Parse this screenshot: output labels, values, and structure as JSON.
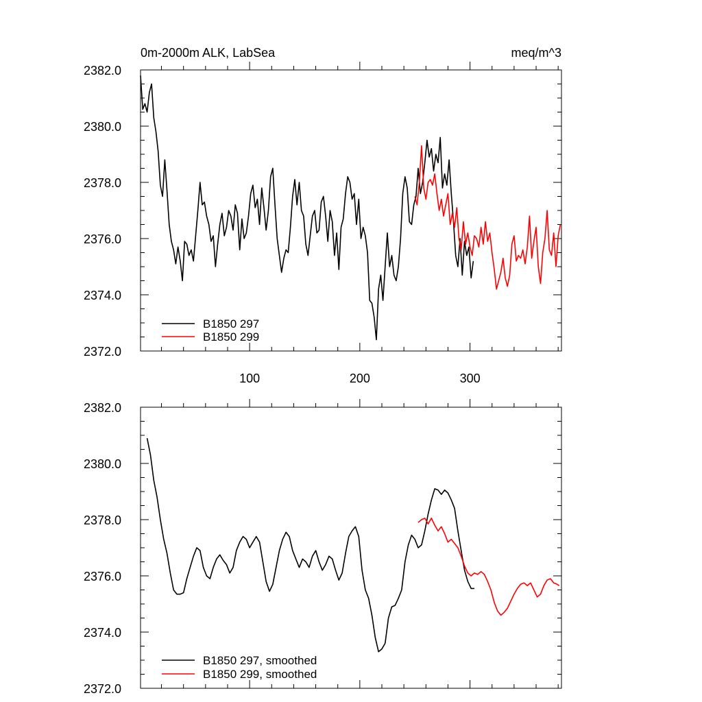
{
  "chart_data": [
    {
      "type": "line",
      "title": "0m-2000m ALK, LabSea",
      "units": "meq/m^3",
      "xlim": [
        1,
        383
      ],
      "ylim": [
        2372,
        2382
      ],
      "xticks": [
        100,
        200,
        300
      ],
      "yticks": [
        2372,
        2374,
        2376,
        2378,
        2380,
        2382
      ],
      "ytick_labels": [
        "2372.0",
        "2374.0",
        "2376.0",
        "2378.0",
        "2380.0",
        "2382.0"
      ],
      "legend": "bottom-left",
      "grid": false,
      "series": [
        {
          "name": "B1850 297",
          "color": "#000000",
          "x": [
            1,
            3,
            5,
            7,
            9,
            11,
            13,
            15,
            17,
            19,
            21,
            23,
            25,
            27,
            29,
            31,
            33,
            35,
            37,
            39,
            41,
            43,
            45,
            47,
            49,
            51,
            53,
            55,
            57,
            59,
            61,
            63,
            65,
            67,
            69,
            71,
            73,
            75,
            77,
            79,
            81,
            83,
            85,
            87,
            89,
            91,
            93,
            95,
            97,
            99,
            101,
            103,
            105,
            107,
            109,
            111,
            113,
            115,
            117,
            119,
            121,
            123,
            125,
            127,
            129,
            131,
            133,
            135,
            137,
            139,
            141,
            143,
            145,
            147,
            149,
            151,
            153,
            155,
            157,
            159,
            161,
            163,
            165,
            167,
            169,
            171,
            173,
            175,
            177,
            179,
            181,
            183,
            185,
            187,
            189,
            191,
            193,
            195,
            197,
            199,
            201,
            203,
            205,
            207,
            209,
            211,
            213,
            215,
            217,
            219,
            221,
            223,
            225,
            227,
            229,
            231,
            233,
            235,
            237,
            239,
            241,
            243,
            245,
            247,
            249,
            251,
            253,
            255,
            257,
            259,
            261,
            263,
            265,
            267,
            269,
            271,
            273,
            275,
            277,
            279,
            281,
            283,
            285,
            287,
            289,
            291,
            293,
            295,
            297,
            299,
            301,
            303
          ],
          "y": [
            2381.8,
            2380.6,
            2380.8,
            2380.5,
            2381.2,
            2381.5,
            2380.3,
            2379.8,
            2379.1,
            2377.9,
            2377.5,
            2378.8,
            2377.7,
            2376.5,
            2375.9,
            2375.6,
            2375.1,
            2375.7,
            2375.2,
            2374.5,
            2375.9,
            2375.8,
            2375.4,
            2375.6,
            2375.2,
            2376.1,
            2377.0,
            2378.0,
            2377.2,
            2377.3,
            2376.8,
            2376.5,
            2375.9,
            2376.1,
            2375.0,
            2375.8,
            2376.5,
            2376.9,
            2376.1,
            2376.4,
            2377.0,
            2376.8,
            2376.3,
            2377.2,
            2376.9,
            2375.6,
            2376.7,
            2376.0,
            2376.2,
            2376.8,
            2377.6,
            2377.9,
            2377.1,
            2377.4,
            2376.5,
            2377.8,
            2377.1,
            2376.3,
            2377.0,
            2378.2,
            2378.5,
            2377.2,
            2376.0,
            2375.4,
            2374.8,
            2375.3,
            2375.6,
            2375.5,
            2376.4,
            2377.5,
            2378.1,
            2377.2,
            2378.0,
            2377.0,
            2376.8,
            2375.8,
            2375.4,
            2376.1,
            2376.8,
            2377.0,
            2376.2,
            2376.3,
            2377.3,
            2377.5,
            2376.8,
            2375.9,
            2377.0,
            2376.6,
            2375.4,
            2376.2,
            2374.9,
            2376.4,
            2376.7,
            2377.6,
            2378.2,
            2378.0,
            2377.4,
            2377.6,
            2376.5,
            2377.4,
            2376.0,
            2376.4,
            2376.1,
            2375.5,
            2373.8,
            2373.7,
            2373.2,
            2372.4,
            2374.2,
            2374.7,
            2373.8,
            2375.0,
            2376.2,
            2375.0,
            2375.4,
            2374.7,
            2374.5,
            2375.0,
            2376.0,
            2377.6,
            2378.2,
            2377.8,
            2376.6,
            2376.5,
            2377.2,
            2377.5,
            2378.5,
            2377.6,
            2378.0,
            2378.7,
            2379.5,
            2378.9,
            2379.2,
            2378.4,
            2379.0,
            2378.7,
            2379.6,
            2377.8,
            2378.3,
            2377.9,
            2378.8,
            2377.6,
            2376.6,
            2375.4,
            2375.0,
            2376.0,
            2374.7,
            2375.9,
            2375.4,
            2375.7,
            2374.6,
            2375.2
          ]
        },
        {
          "name": "B1850 299",
          "color": "#ff0000",
          "x": [
            250,
            252,
            254,
            256,
            258,
            260,
            262,
            264,
            266,
            268,
            270,
            272,
            274,
            276,
            278,
            280,
            282,
            284,
            286,
            288,
            290,
            292,
            294,
            296,
            298,
            300,
            302,
            304,
            306,
            308,
            310,
            312,
            314,
            316,
            318,
            320,
            322,
            324,
            326,
            328,
            330,
            332,
            334,
            336,
            338,
            340,
            342,
            344,
            346,
            348,
            350,
            352,
            354,
            356,
            358,
            360,
            362,
            364,
            366,
            368,
            370,
            372,
            374,
            376,
            378,
            380,
            382
          ],
          "y": [
            2377.5,
            2377.2,
            2378.0,
            2379.3,
            2377.8,
            2377.4,
            2378.0,
            2378.1,
            2377.9,
            2378.3,
            2377.6,
            2377.0,
            2377.4,
            2376.8,
            2377.2,
            2377.6,
            2376.5,
            2376.9,
            2376.4,
            2377.1,
            2376.0,
            2375.6,
            2376.6,
            2375.8,
            2376.2,
            2375.7,
            2375.4,
            2376.1,
            2376.0,
            2375.7,
            2376.4,
            2375.8,
            2376.6,
            2375.9,
            2376.2,
            2375.5,
            2374.9,
            2374.2,
            2374.5,
            2374.8,
            2375.3,
            2374.6,
            2374.3,
            2374.7,
            2375.8,
            2376.1,
            2375.2,
            2375.4,
            2375.3,
            2375.6,
            2375.1,
            2375.7,
            2376.8,
            2375.3,
            2375.9,
            2376.4,
            2375.0,
            2374.4,
            2375.5,
            2376.0,
            2377.0,
            2375.6,
            2375.4,
            2376.2,
            2375.0,
            2376.1,
            2376.5
          ]
        }
      ]
    },
    {
      "type": "line",
      "xlim": [
        1,
        383
      ],
      "ylim": [
        2372,
        2382
      ],
      "xticks": [
        100,
        200,
        300
      ],
      "yticks": [
        2372,
        2374,
        2376,
        2378,
        2380,
        2382
      ],
      "ytick_labels": [
        "2372.0",
        "2374.0",
        "2376.0",
        "2378.0",
        "2380.0",
        "2382.0"
      ],
      "legend": "bottom-left",
      "grid": false,
      "series": [
        {
          "name": "B1850 297, smoothed",
          "color": "#000000",
          "x": [
            7,
            10,
            13,
            16,
            19,
            22,
            25,
            28,
            31,
            34,
            37,
            40,
            43,
            46,
            49,
            52,
            55,
            58,
            61,
            64,
            67,
            70,
            73,
            76,
            79,
            82,
            85,
            88,
            91,
            94,
            97,
            100,
            103,
            106,
            109,
            112,
            115,
            118,
            121,
            124,
            127,
            130,
            133,
            136,
            139,
            142,
            145,
            148,
            151,
            154,
            157,
            160,
            163,
            166,
            169,
            172,
            175,
            178,
            181,
            184,
            187,
            190,
            193,
            196,
            199,
            202,
            205,
            208,
            211,
            214,
            217,
            220,
            223,
            226,
            229,
            232,
            235,
            238,
            241,
            244,
            247,
            250,
            253,
            256,
            259,
            262,
            265,
            268,
            271,
            274,
            277,
            280,
            283,
            286,
            289,
            292,
            295,
            298,
            301,
            304
          ],
          "y": [
            2380.9,
            2380.3,
            2379.4,
            2378.8,
            2378.0,
            2377.3,
            2376.8,
            2376.1,
            2375.5,
            2375.35,
            2375.35,
            2375.4,
            2375.9,
            2376.3,
            2376.7,
            2377.0,
            2376.9,
            2376.3,
            2376.0,
            2375.9,
            2376.3,
            2376.6,
            2376.75,
            2376.55,
            2376.4,
            2376.1,
            2376.3,
            2376.9,
            2377.2,
            2377.4,
            2377.3,
            2377.0,
            2377.2,
            2377.4,
            2377.2,
            2376.5,
            2375.8,
            2375.45,
            2375.7,
            2376.3,
            2376.9,
            2377.3,
            2377.55,
            2377.4,
            2376.9,
            2376.6,
            2376.3,
            2376.6,
            2376.5,
            2376.3,
            2376.7,
            2376.9,
            2376.5,
            2376.2,
            2376.4,
            2376.7,
            2376.6,
            2376.2,
            2375.85,
            2376.1,
            2376.8,
            2377.4,
            2377.6,
            2377.75,
            2377.4,
            2376.2,
            2375.5,
            2375.2,
            2374.6,
            2373.8,
            2373.3,
            2373.4,
            2373.6,
            2374.5,
            2374.9,
            2374.95,
            2375.2,
            2375.5,
            2376.5,
            2377.1,
            2377.45,
            2377.3,
            2377.0,
            2377.1,
            2377.6,
            2378.2,
            2378.7,
            2379.1,
            2379.05,
            2378.9,
            2379.05,
            2378.95,
            2378.7,
            2378.4,
            2377.6,
            2376.9,
            2376.2,
            2375.8,
            2375.55,
            2375.55
          ]
        },
        {
          "name": "B1850 299, smoothed",
          "color": "#ff0000",
          "x": [
            253,
            256,
            259,
            262,
            265,
            268,
            271,
            274,
            277,
            280,
            283,
            286,
            289,
            292,
            295,
            298,
            301,
            304,
            307,
            310,
            313,
            316,
            319,
            322,
            325,
            328,
            331,
            334,
            337,
            340,
            343,
            346,
            349,
            352,
            355,
            358,
            361,
            364,
            367,
            370,
            373,
            376,
            379,
            381
          ],
          "y": [
            2377.9,
            2378.0,
            2378.05,
            2377.85,
            2378.05,
            2377.8,
            2377.6,
            2377.75,
            2377.5,
            2377.2,
            2377.3,
            2377.15,
            2377.0,
            2376.7,
            2376.35,
            2376.1,
            2376.0,
            2376.1,
            2376.05,
            2376.15,
            2376.05,
            2375.8,
            2375.5,
            2375.05,
            2374.75,
            2374.6,
            2374.7,
            2374.85,
            2375.1,
            2375.35,
            2375.55,
            2375.7,
            2375.75,
            2375.65,
            2375.75,
            2375.5,
            2375.25,
            2375.35,
            2375.65,
            2375.85,
            2375.9,
            2375.75,
            2375.7,
            2375.65
          ]
        }
      ]
    }
  ]
}
